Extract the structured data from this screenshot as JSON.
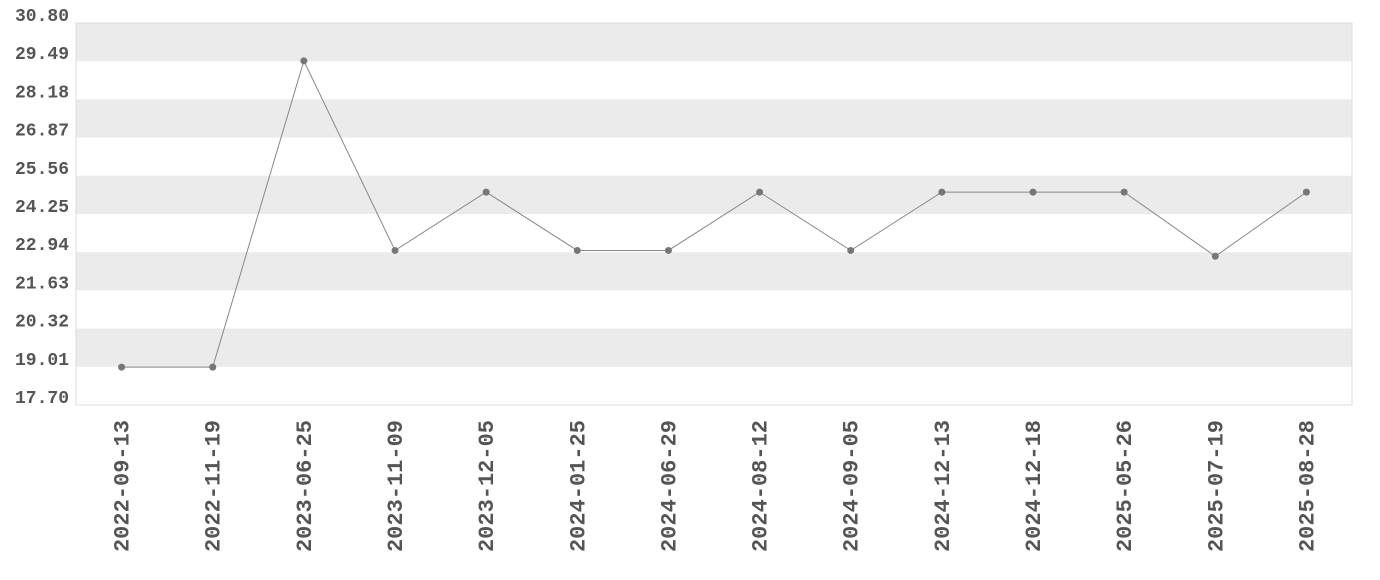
{
  "chart_data": {
    "type": "line",
    "categories": [
      "2022-09-13",
      "2022-11-19",
      "2023-06-25",
      "2023-11-09",
      "2023-12-05",
      "2024-01-25",
      "2024-06-29",
      "2024-08-12",
      "2024-09-05",
      "2024-12-13",
      "2024-12-18",
      "2025-05-26",
      "2025-07-19",
      "2025-08-28"
    ],
    "series": [
      {
        "color": "#777777",
        "values": [
          19.0,
          19.0,
          29.5,
          23.0,
          25.0,
          23.0,
          23.0,
          25.0,
          23.0,
          25.0,
          25.0,
          25.0,
          22.8,
          25.0
        ]
      }
    ],
    "ylim": [
      17.7,
      30.8
    ],
    "yticks": [
      {
        "value": 17.7,
        "label": "17.70"
      },
      19.01,
      20.32,
      21.63,
      22.94,
      24.25,
      25.56,
      26.87,
      28.18,
      29.49,
      {
        "value": 30.8,
        "label": "30.80"
      }
    ],
    "grid": true
  }
}
